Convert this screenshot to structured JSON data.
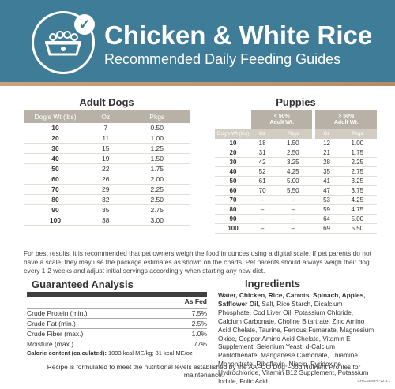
{
  "header": {
    "title": "Chicken & White Rice",
    "subtitle": "Recommended Daily Feeding Guides"
  },
  "adult": {
    "title": "Adult Dogs",
    "columns": [
      "Dog's Wt (lbs)",
      "Oz",
      "Pkgs"
    ],
    "rows": [
      [
        "10",
        "7",
        "0.50"
      ],
      [
        "20",
        "11",
        "1.00"
      ],
      [
        "30",
        "15",
        "1.25"
      ],
      [
        "40",
        "19",
        "1.50"
      ],
      [
        "50",
        "22",
        "1.75"
      ],
      [
        "60",
        "26",
        "2.00"
      ],
      [
        "70",
        "29",
        "2.25"
      ],
      [
        "80",
        "32",
        "2.50"
      ],
      [
        "90",
        "35",
        "2.75"
      ],
      [
        "100",
        "38",
        "3.00"
      ]
    ]
  },
  "puppies": {
    "title": "Puppies",
    "group1": "< 50%\nAdult Wt.",
    "group2": "> 50%\nAdult Wt.",
    "columns": [
      "Dog's Wt (lbs)",
      "Oz",
      "Pkgs",
      "Oz",
      "Pkgs"
    ],
    "rows": [
      [
        "10",
        "18",
        "1.50",
        "12",
        "1.00"
      ],
      [
        "20",
        "31",
        "2.50",
        "21",
        "1.75"
      ],
      [
        "30",
        "42",
        "3.25",
        "28",
        "2.25"
      ],
      [
        "40",
        "52",
        "4.25",
        "35",
        "2.75"
      ],
      [
        "50",
        "61",
        "5.00",
        "41",
        "3.25"
      ],
      [
        "60",
        "70",
        "5.50",
        "47",
        "3.75"
      ],
      [
        "70",
        "–",
        "–",
        "53",
        "4.25"
      ],
      [
        "80",
        "–",
        "–",
        "59",
        "4.75"
      ],
      [
        "90",
        "–",
        "–",
        "64",
        "5.00"
      ],
      [
        "100",
        "–",
        "–",
        "69",
        "5.50"
      ]
    ]
  },
  "note": "For best results, it is recommended that pet owners weigh the food in ounces using a digital scale. If pet parents do not have a scale, they may use the package estimates as shown on the charts. Pet parents should always weigh their dog every 1-2 weeks and adjust initial servings accordingly when starting any new diet.",
  "analysis": {
    "title": "Guaranteed Analysis",
    "header": "As Fed",
    "rows": [
      [
        "Crude Protein (min.)",
        "7.5%"
      ],
      [
        "Crude Fat (min.)",
        "2.5%"
      ],
      [
        "Crude Fiber (max.)",
        "1.0%"
      ],
      [
        "Moisture (max.)",
        "77%"
      ]
    ],
    "calorie_label": "Calorie content (calculated):",
    "calorie_value": " 1093 kcal ME/kg; 31 kcal ME/oz"
  },
  "ingredients": {
    "title": "Ingredients",
    "bold": "Water, Chicken, Rice, Carrots, Spinach, Apples, Safflower Oil,",
    "rest": " Salt, Rice Starch, Dicalcium Phosphate, Cod Liver Oil, Potassium Chloride, Calcium Carbonate, Choline Bitartrate, Zinc Amino Acid Chelate, Taurine, Ferrous Fumarate, Magnesium Oxide, Copper Amino Acid Chelate, Vitamin E Supplement, Selenium Yeast, d-Calcium Pantothenate, Manganese Carbonate, Thiamine Mononitrate, Riboflavin, Niacin, Pyridoxine Hydrochloride, Vitamin B12 Supplement, Potassium Iodide, Folic Acid."
  },
  "recipe": "Recipe is formulated to meet the nutritional levels established by the AAFCO Dog Food Nutrient Profiles for maintenance.",
  "code": "CHICKEN-PF-22.3.1",
  "icons": {
    "badge": "dog-bowl-icon",
    "check": "checkmark-icon"
  },
  "colors": {
    "header": "#3f7c97",
    "stripe": "#c8a27a",
    "table_header": "#b8b1a7"
  }
}
